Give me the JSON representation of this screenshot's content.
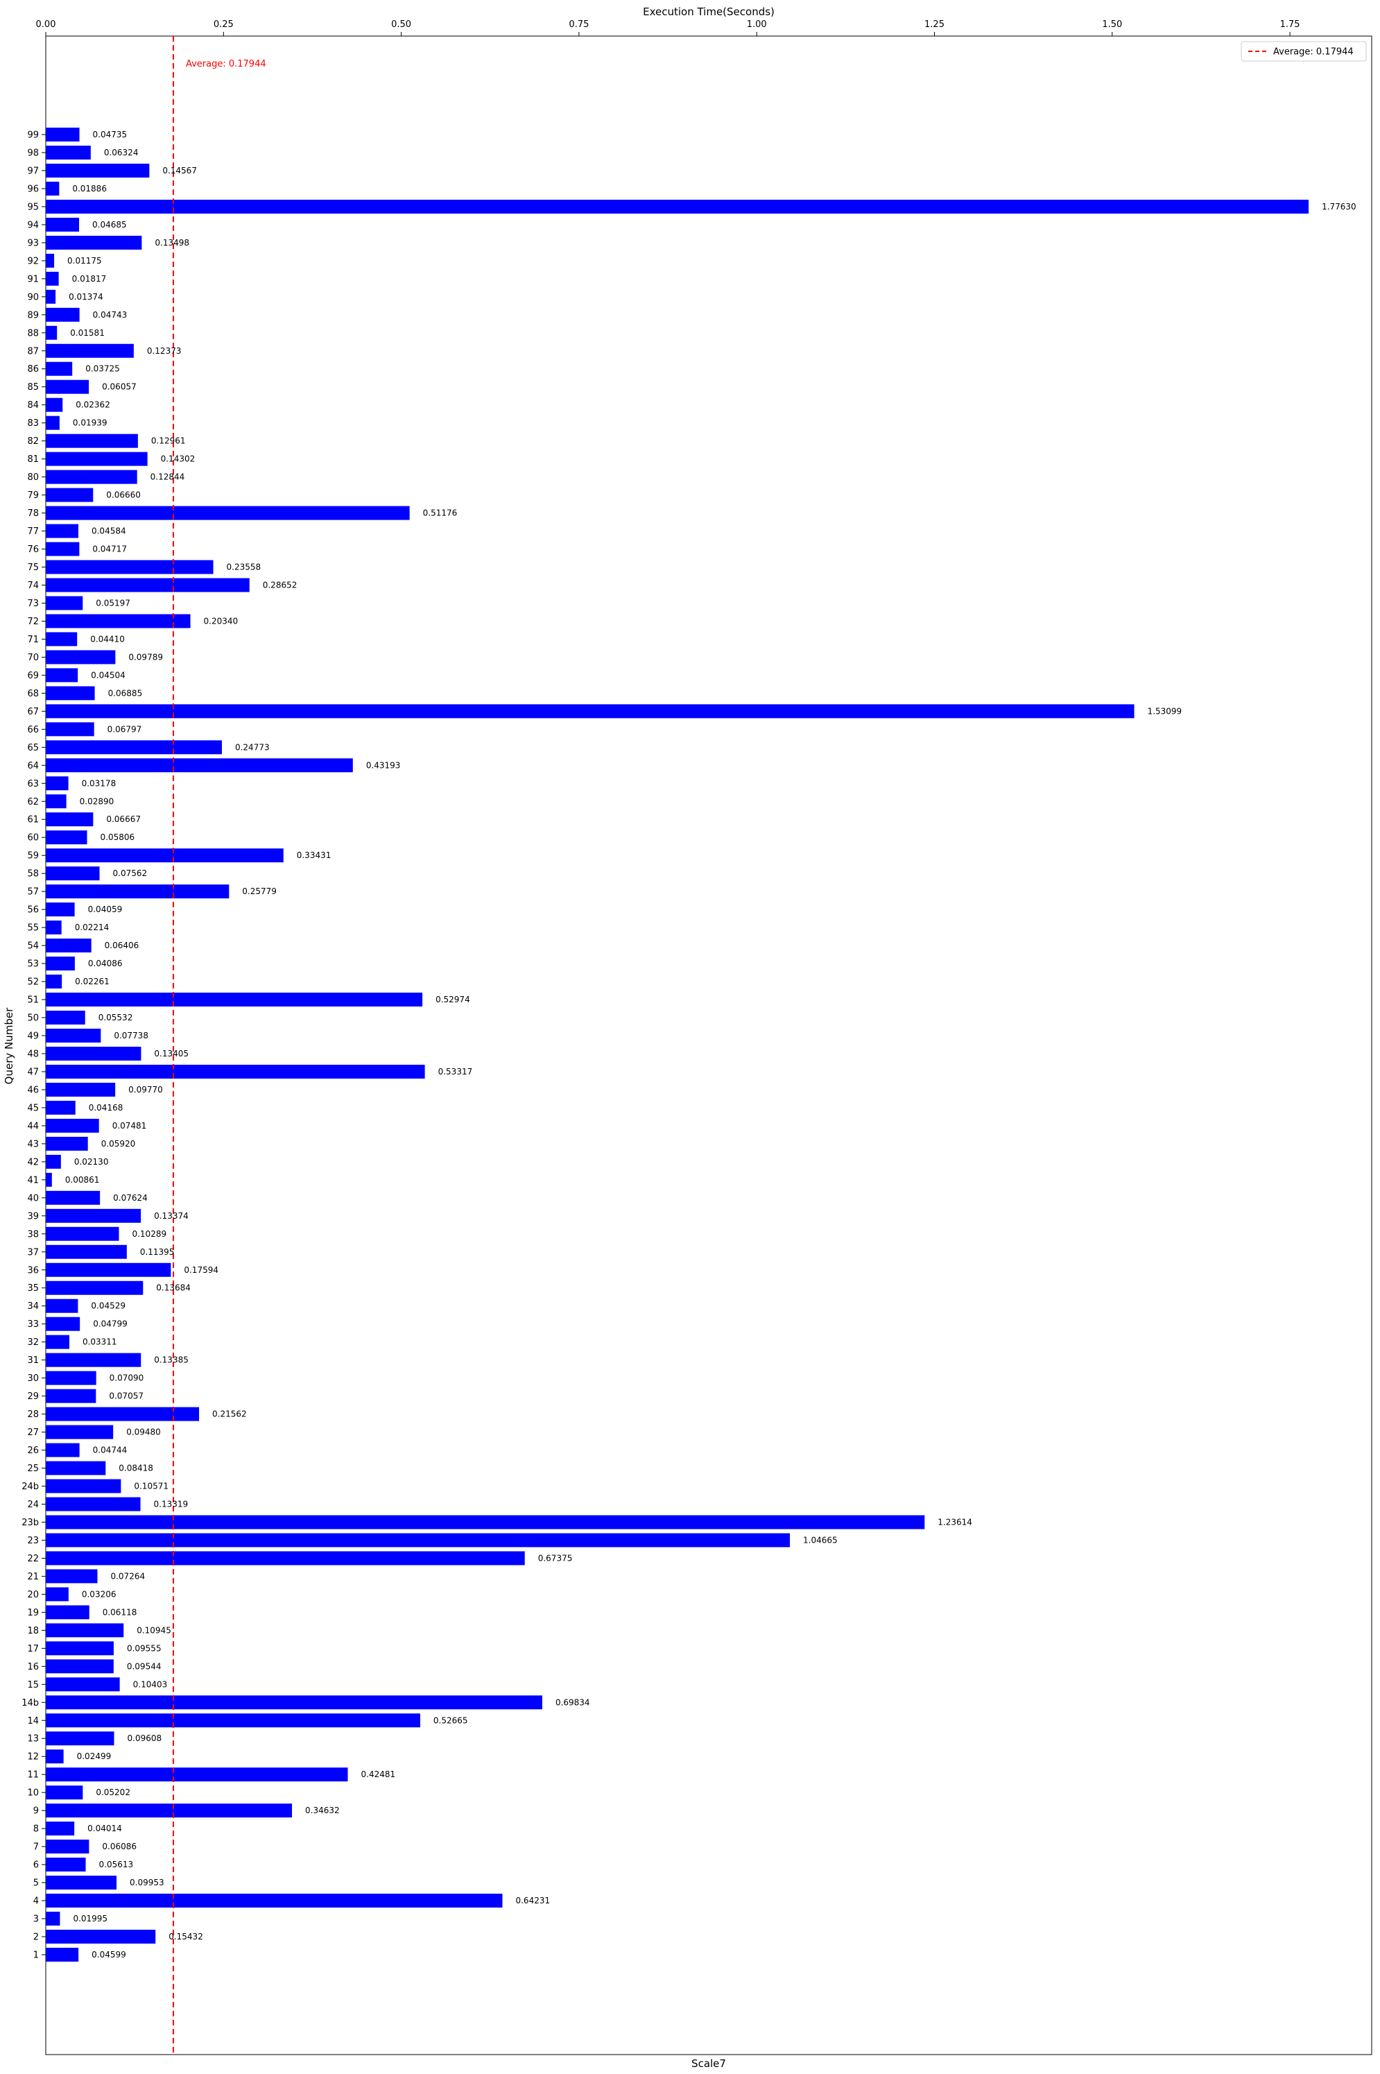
{
  "chart_data": {
    "type": "bar",
    "orientation": "horizontal",
    "title": "Execution Time(Seconds)",
    "xlabel": "Scale7",
    "ylabel": "Query Number",
    "xlim": [
      0,
      1.865
    ],
    "x_ticks": [
      "0.00",
      "0.25",
      "0.50",
      "0.75",
      "1.00",
      "1.25",
      "1.50",
      "1.75"
    ],
    "x_axis_position": "top",
    "grid": false,
    "bar_color": "#0000ff",
    "average": {
      "value": 0.17944,
      "label": "Average: 0.17944",
      "color": "#ff0000",
      "style": "dashed"
    },
    "legend": {
      "placement": "top-right",
      "entries": [
        "Average: 0.17944"
      ]
    },
    "categories": [
      "1",
      "2",
      "3",
      "4",
      "5",
      "6",
      "7",
      "8",
      "9",
      "10",
      "11",
      "12",
      "13",
      "14",
      "14b",
      "15",
      "16",
      "17",
      "18",
      "19",
      "20",
      "21",
      "22",
      "23",
      "23b",
      "24",
      "24b",
      "25",
      "26",
      "27",
      "28",
      "29",
      "30",
      "31",
      "32",
      "33",
      "34",
      "35",
      "36",
      "37",
      "38",
      "39",
      "40",
      "41",
      "42",
      "43",
      "44",
      "45",
      "46",
      "47",
      "48",
      "49",
      "50",
      "51",
      "52",
      "53",
      "54",
      "55",
      "56",
      "57",
      "58",
      "59",
      "60",
      "61",
      "62",
      "63",
      "64",
      "65",
      "66",
      "67",
      "68",
      "69",
      "70",
      "71",
      "72",
      "73",
      "74",
      "75",
      "76",
      "77",
      "78",
      "79",
      "80",
      "81",
      "82",
      "83",
      "84",
      "85",
      "86",
      "87",
      "88",
      "89",
      "90",
      "91",
      "92",
      "93",
      "94",
      "95",
      "96",
      "97",
      "98",
      "99"
    ],
    "values": [
      0.04599,
      0.15432,
      0.01995,
      0.64231,
      0.09953,
      0.05613,
      0.06086,
      0.04014,
      0.34632,
      0.05202,
      0.42481,
      0.02499,
      0.09608,
      0.52665,
      0.69834,
      0.10403,
      0.09544,
      0.09555,
      0.10945,
      0.06118,
      0.03206,
      0.07264,
      0.67375,
      1.04665,
      1.23614,
      0.13319,
      0.10571,
      0.08418,
      0.04744,
      0.0948,
      0.21562,
      0.07057,
      0.0709,
      0.13385,
      0.03311,
      0.04799,
      0.04529,
      0.13684,
      0.17594,
      0.11395,
      0.10289,
      0.13374,
      0.07624,
      0.00861,
      0.0213,
      0.0592,
      0.07481,
      0.04168,
      0.0977,
      0.53317,
      0.13405,
      0.07738,
      0.05532,
      0.52974,
      0.02261,
      0.04086,
      0.06406,
      0.02214,
      0.04059,
      0.25779,
      0.07562,
      0.33431,
      0.05806,
      0.06667,
      0.0289,
      0.03178,
      0.43193,
      0.24773,
      0.06797,
      1.53099,
      0.06885,
      0.04504,
      0.09789,
      0.0441,
      0.2034,
      0.05197,
      0.28652,
      0.23558,
      0.04717,
      0.04584,
      0.51176,
      0.0666,
      0.12844,
      0.14302,
      0.12961,
      0.01939,
      0.02362,
      0.06057,
      0.03725,
      0.12373,
      0.01581,
      0.04743,
      0.01374,
      0.01817,
      0.01175,
      0.13498,
      0.04685,
      1.7763,
      0.01886,
      0.14567,
      0.06324,
      0.04735
    ],
    "value_labels": [
      "0.04599",
      "0.15432",
      "0.01995",
      "0.64231",
      "0.09953",
      "0.05613",
      "0.06086",
      "0.04014",
      "0.34632",
      "0.05202",
      "0.42481",
      "0.02499",
      "0.09608",
      "0.52665",
      "0.69834",
      "0.10403",
      "0.09544",
      "0.09555",
      "0.10945",
      "0.06118",
      "0.03206",
      "0.07264",
      "0.67375",
      "1.04665",
      "1.23614",
      "0.13319",
      "0.10571",
      "0.08418",
      "0.04744",
      "0.09480",
      "0.21562",
      "0.07057",
      "0.07090",
      "0.13385",
      "0.03311",
      "0.04799",
      "0.04529",
      "0.13684",
      "0.17594",
      "0.11395",
      "0.10289",
      "0.13374",
      "0.07624",
      "0.00861",
      "0.02130",
      "0.05920",
      "0.07481",
      "0.04168",
      "0.09770",
      "0.53317",
      "0.13405",
      "0.07738",
      "0.05532",
      "0.52974",
      "0.02261",
      "0.04086",
      "0.06406",
      "0.02214",
      "0.04059",
      "0.25779",
      "0.07562",
      "0.33431",
      "0.05806",
      "0.06667",
      "0.02890",
      "0.03178",
      "0.43193",
      "0.24773",
      "0.06797",
      "1.53099",
      "0.06885",
      "0.04504",
      "0.09789",
      "0.04410",
      "0.20340",
      "0.05197",
      "0.28652",
      "0.23558",
      "0.04717",
      "0.04584",
      "0.51176",
      "0.06660",
      "0.12844",
      "0.14302",
      "0.12961",
      "0.01939",
      "0.02362",
      "0.06057",
      "0.03725",
      "0.12373",
      "0.01581",
      "0.04743",
      "0.01374",
      "0.01817",
      "0.01175",
      "0.13498",
      "0.04685",
      "1.77630",
      "0.01886",
      "0.14567",
      "0.06324",
      "0.04735"
    ]
  }
}
